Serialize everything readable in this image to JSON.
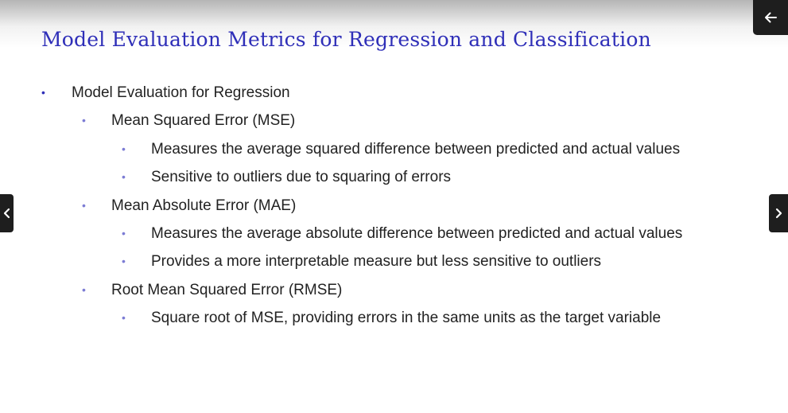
{
  "slide": {
    "title": "Model Evaluation Metrics for Regression and Classification",
    "bullet_glyph": "•",
    "bullets": [
      {
        "level": 1,
        "text": "Model Evaluation for Regression"
      },
      {
        "level": 2,
        "text": "Mean Squared Error (MSE)"
      },
      {
        "level": 3,
        "text": "Measures the average squared difference between predicted and actual values"
      },
      {
        "level": 3,
        "text": "Sensitive to outliers due to squaring of errors"
      },
      {
        "level": 2,
        "text": "Mean Absolute Error (MAE)"
      },
      {
        "level": 3,
        "text": "Measures the average absolute difference between predicted and actual values"
      },
      {
        "level": 3,
        "text": "Provides a more interpretable measure but less sensitive to outliers"
      },
      {
        "level": 2,
        "text": "Root Mean Squared Error (RMSE)"
      },
      {
        "level": 3,
        "text": "Square root of MSE, providing errors in the same units as the target variable"
      }
    ]
  },
  "controls": {
    "back": {
      "icon": "arrow-left-icon"
    },
    "prev": {
      "icon": "chevron-left-icon"
    },
    "next": {
      "icon": "chevron-right-icon"
    }
  },
  "colors": {
    "title": "#2f2fb8",
    "body_text": "#222222",
    "bullet_level1": "#2f2fb8",
    "bullet_sublevel": "#7c7cd4",
    "control_background": "#1e1e1e",
    "control_icon": "#ffffff"
  }
}
